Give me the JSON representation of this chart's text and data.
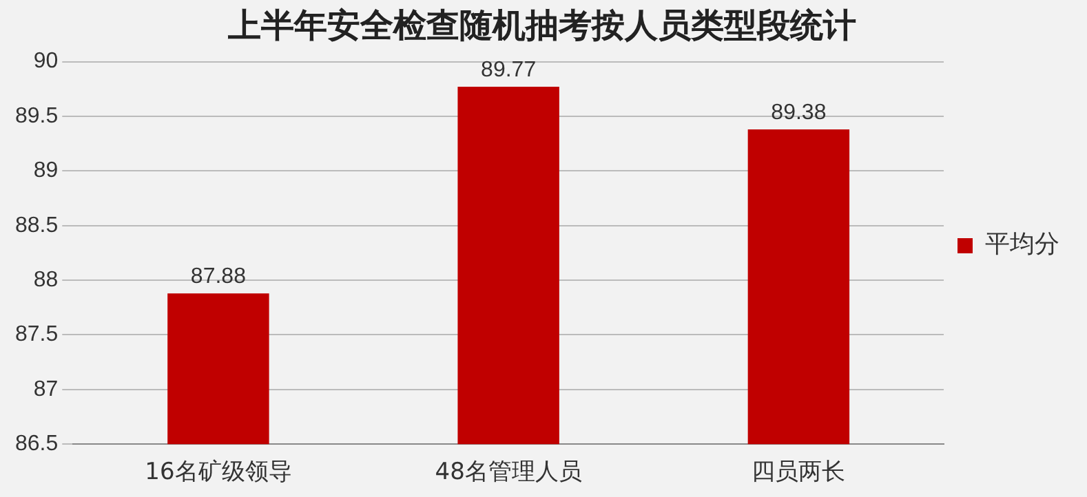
{
  "chart_data": {
    "type": "bar",
    "title": "上半年安全检查随机抽考按人员类型段统计",
    "categories": [
      "16名矿级领导",
      "48名管理人员",
      "四员两长"
    ],
    "series": [
      {
        "name": "平均分",
        "color": "#c00000",
        "values": [
          87.88,
          89.77,
          89.38
        ]
      }
    ],
    "ylim": [
      86.5,
      90
    ],
    "yticks": [
      86.5,
      87,
      87.5,
      88,
      88.5,
      89,
      89.5,
      90
    ],
    "grid": "y",
    "legend": "right",
    "data_labels": true
  }
}
